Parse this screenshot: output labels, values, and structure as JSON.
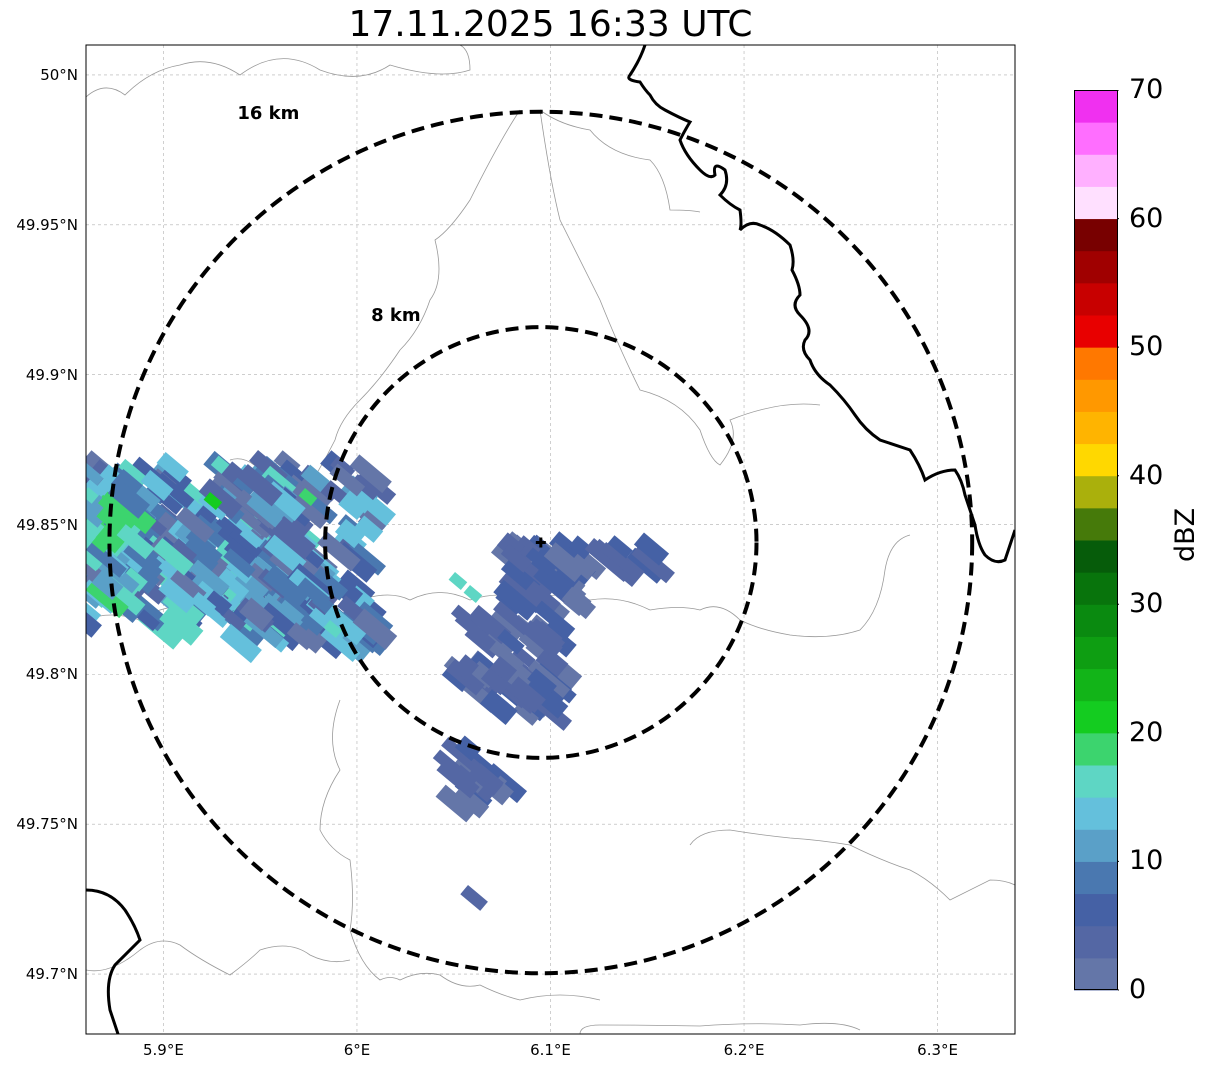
{
  "title": "17.11.2025 16:33 UTC",
  "map": {
    "lon_range": [
      5.86,
      6.34
    ],
    "lat_range": [
      49.68,
      50.01
    ],
    "gridlines": true,
    "x_ticks": [
      {
        "lon": 5.9,
        "label": "5.9°E"
      },
      {
        "lon": 6.0,
        "label": "6°E"
      },
      {
        "lon": 6.1,
        "label": "6.1°E"
      },
      {
        "lon": 6.2,
        "label": "6.2°E"
      },
      {
        "lon": 6.3,
        "label": "6.3°E"
      }
    ],
    "y_ticks": [
      {
        "lat": 50.0,
        "label": "50°N"
      },
      {
        "lat": 49.95,
        "label": "49.95°N"
      },
      {
        "lat": 49.9,
        "label": "49.9°N"
      },
      {
        "lat": 49.85,
        "label": "49.85°N"
      },
      {
        "lat": 49.8,
        "label": "49.8°N"
      },
      {
        "lat": 49.75,
        "label": "49.75°N"
      },
      {
        "lat": 49.7,
        "label": "49.7°N"
      }
    ],
    "radar_site": {
      "lon": 6.095,
      "lat": 49.844
    },
    "range_rings": [
      {
        "radius_km": 8,
        "label": "8 km"
      },
      {
        "radius_km": 16,
        "label": "16 km"
      }
    ]
  },
  "colorbar": {
    "label": "dBZ",
    "min": 0,
    "max": 70,
    "tick_labels": [
      "0",
      "10",
      "20",
      "30",
      "40",
      "50",
      "60",
      "70"
    ],
    "colors": [
      "#6476a8",
      "#5467a4",
      "#4561a5",
      "#4a78b0",
      "#5aa0c8",
      "#64c0dc",
      "#5ed6c4",
      "#3cd46e",
      "#14cc20",
      "#12b418",
      "#0e9e12",
      "#0a8a10",
      "#08740c",
      "#065c0a",
      "#467a0a",
      "#aab00c",
      "#ffd800",
      "#ffb400",
      "#ff9800",
      "#ff7800",
      "#e80000",
      "#c80000",
      "#a00000",
      "#780000",
      "#ffe0ff",
      "#ffb0ff",
      "#ff6eff",
      "#f030f0"
    ]
  },
  "colors": {
    "ring": "#000000",
    "border": "#000000",
    "admin_lines": "#999999",
    "grid": "#b0b0b0"
  }
}
